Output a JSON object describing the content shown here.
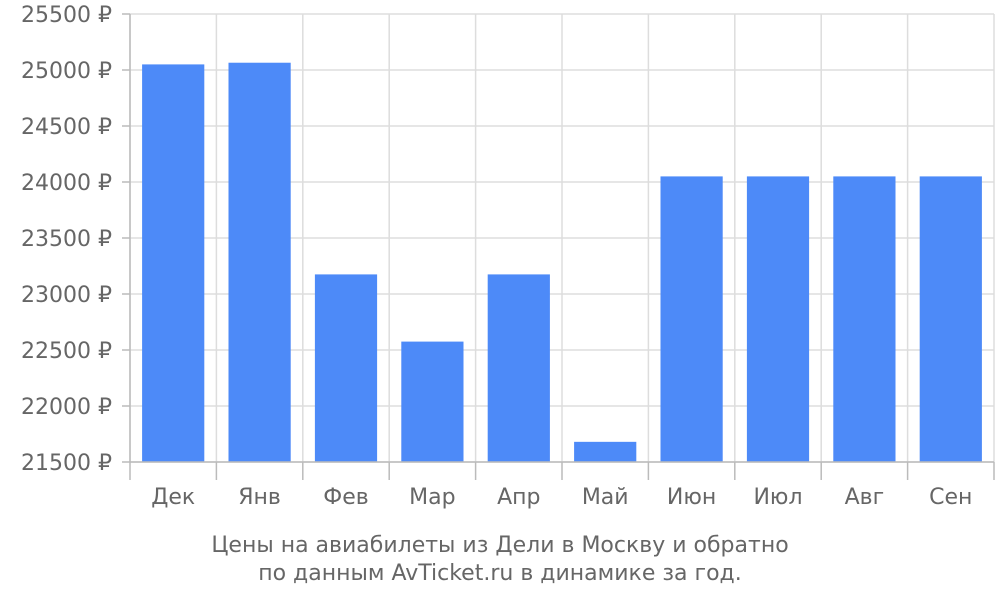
{
  "chart_data": {
    "type": "bar",
    "categories": [
      "Дек",
      "Янв",
      "Фев",
      "Мар",
      "Апр",
      "Май",
      "Июн",
      "Июл",
      "Авг",
      "Сен"
    ],
    "values": [
      25050,
      25065,
      23175,
      22575,
      23175,
      21680,
      24050,
      24050,
      24050,
      24050
    ],
    "ylim": [
      21500,
      25500
    ],
    "yticks": [
      21500,
      22000,
      22500,
      23000,
      23500,
      24000,
      24500,
      25000,
      25500
    ],
    "ytick_labels": [
      "21500 ₽",
      "22000 ₽",
      "22500 ₽",
      "23000 ₽",
      "23500 ₽",
      "24000 ₽",
      "24500 ₽",
      "25000 ₽",
      "25500 ₽"
    ],
    "grid": true,
    "bar_color": "#4d8af8",
    "caption_lines": [
      "Цены на авиабилеты из Дели в Москву и обратно",
      "по данным AvTicket.ru в динамике за год."
    ]
  }
}
